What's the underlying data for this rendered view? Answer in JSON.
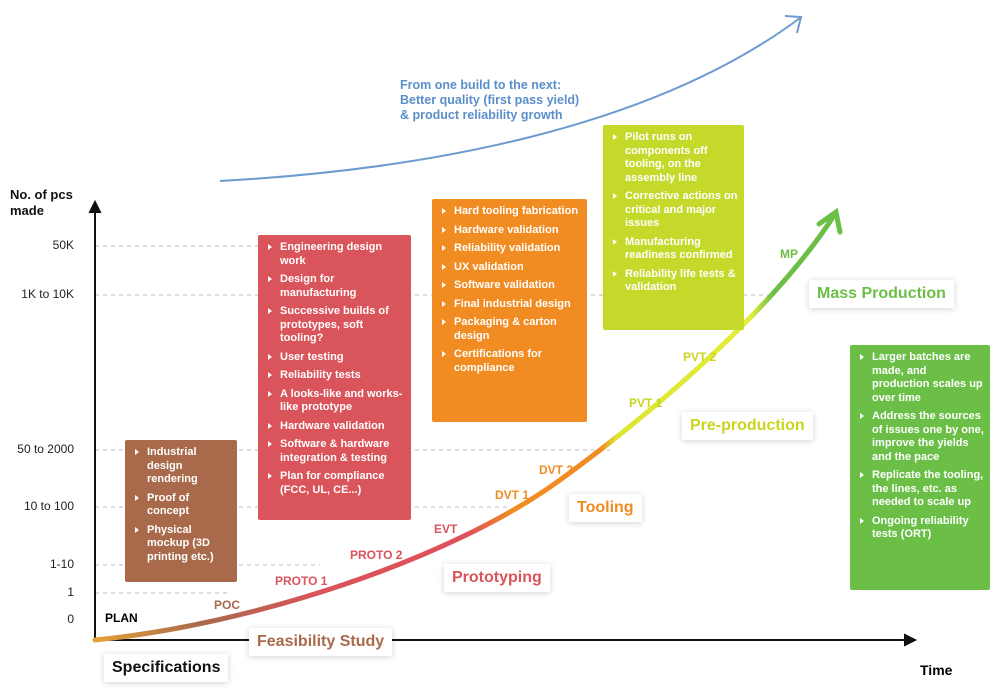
{
  "banner": {
    "lines": [
      "From one build to the next:",
      "Better quality (first pass yield)",
      "& product reliability growth"
    ]
  },
  "y_axis": {
    "title_lines": [
      "No. of pcs",
      "made"
    ],
    "ticks": [
      "50K",
      "1K to 10K",
      "50 to 2000",
      "10 to 100",
      "1-10",
      "1",
      "0"
    ]
  },
  "x_axis": {
    "title": "Time"
  },
  "start": {
    "plan": "PLAN",
    "specifications": "Specifications"
  },
  "milestones": [
    "POC",
    "PROTO 1",
    "PROTO 2",
    "EVT",
    "DVT 1",
    "DVT 2",
    "PVT 1",
    "PVT 2",
    "MP"
  ],
  "phases": [
    "Feasibility Study",
    "Prototyping",
    "Tooling",
    "Pre-production",
    "Mass Production"
  ],
  "activity_boxes": [
    {
      "items": [
        "Industrial design rendering",
        "Proof of concept",
        "Physical mockup (3D printing etc.)"
      ]
    },
    {
      "items": [
        "Engineering design work",
        "Design for manufacturing",
        "Successive builds of prototypes, soft tooling?",
        "User testing",
        "Reliability tests",
        "A looks-like and works-like prototype",
        "Hardware validation",
        "Software & hardware integration & testing",
        "Plan for compliance (FCC, UL, CE...)"
      ]
    },
    {
      "items": [
        "Hard tooling fabrication",
        "Hardware validation",
        "Reliability validation",
        "UX validation",
        "Software validation",
        "Final industrial design",
        "Packaging & carton design",
        "Certifications for compliance"
      ]
    },
    {
      "items": [
        "Pilot runs on components off tooling, on the assembly line",
        "Corrective actions on critical and major issues",
        "Manufacturing readiness confirmed",
        "Reliability life tests & validation"
      ]
    },
    {
      "items": [
        "Larger batches are made, and production scales up over time",
        "Address the sources of issues one by one, improve the yields and the pace",
        "Replicate the tooling, the lines, etc. as needed to scale up",
        "Ongoing reliability tests (ORT)"
      ]
    }
  ]
}
